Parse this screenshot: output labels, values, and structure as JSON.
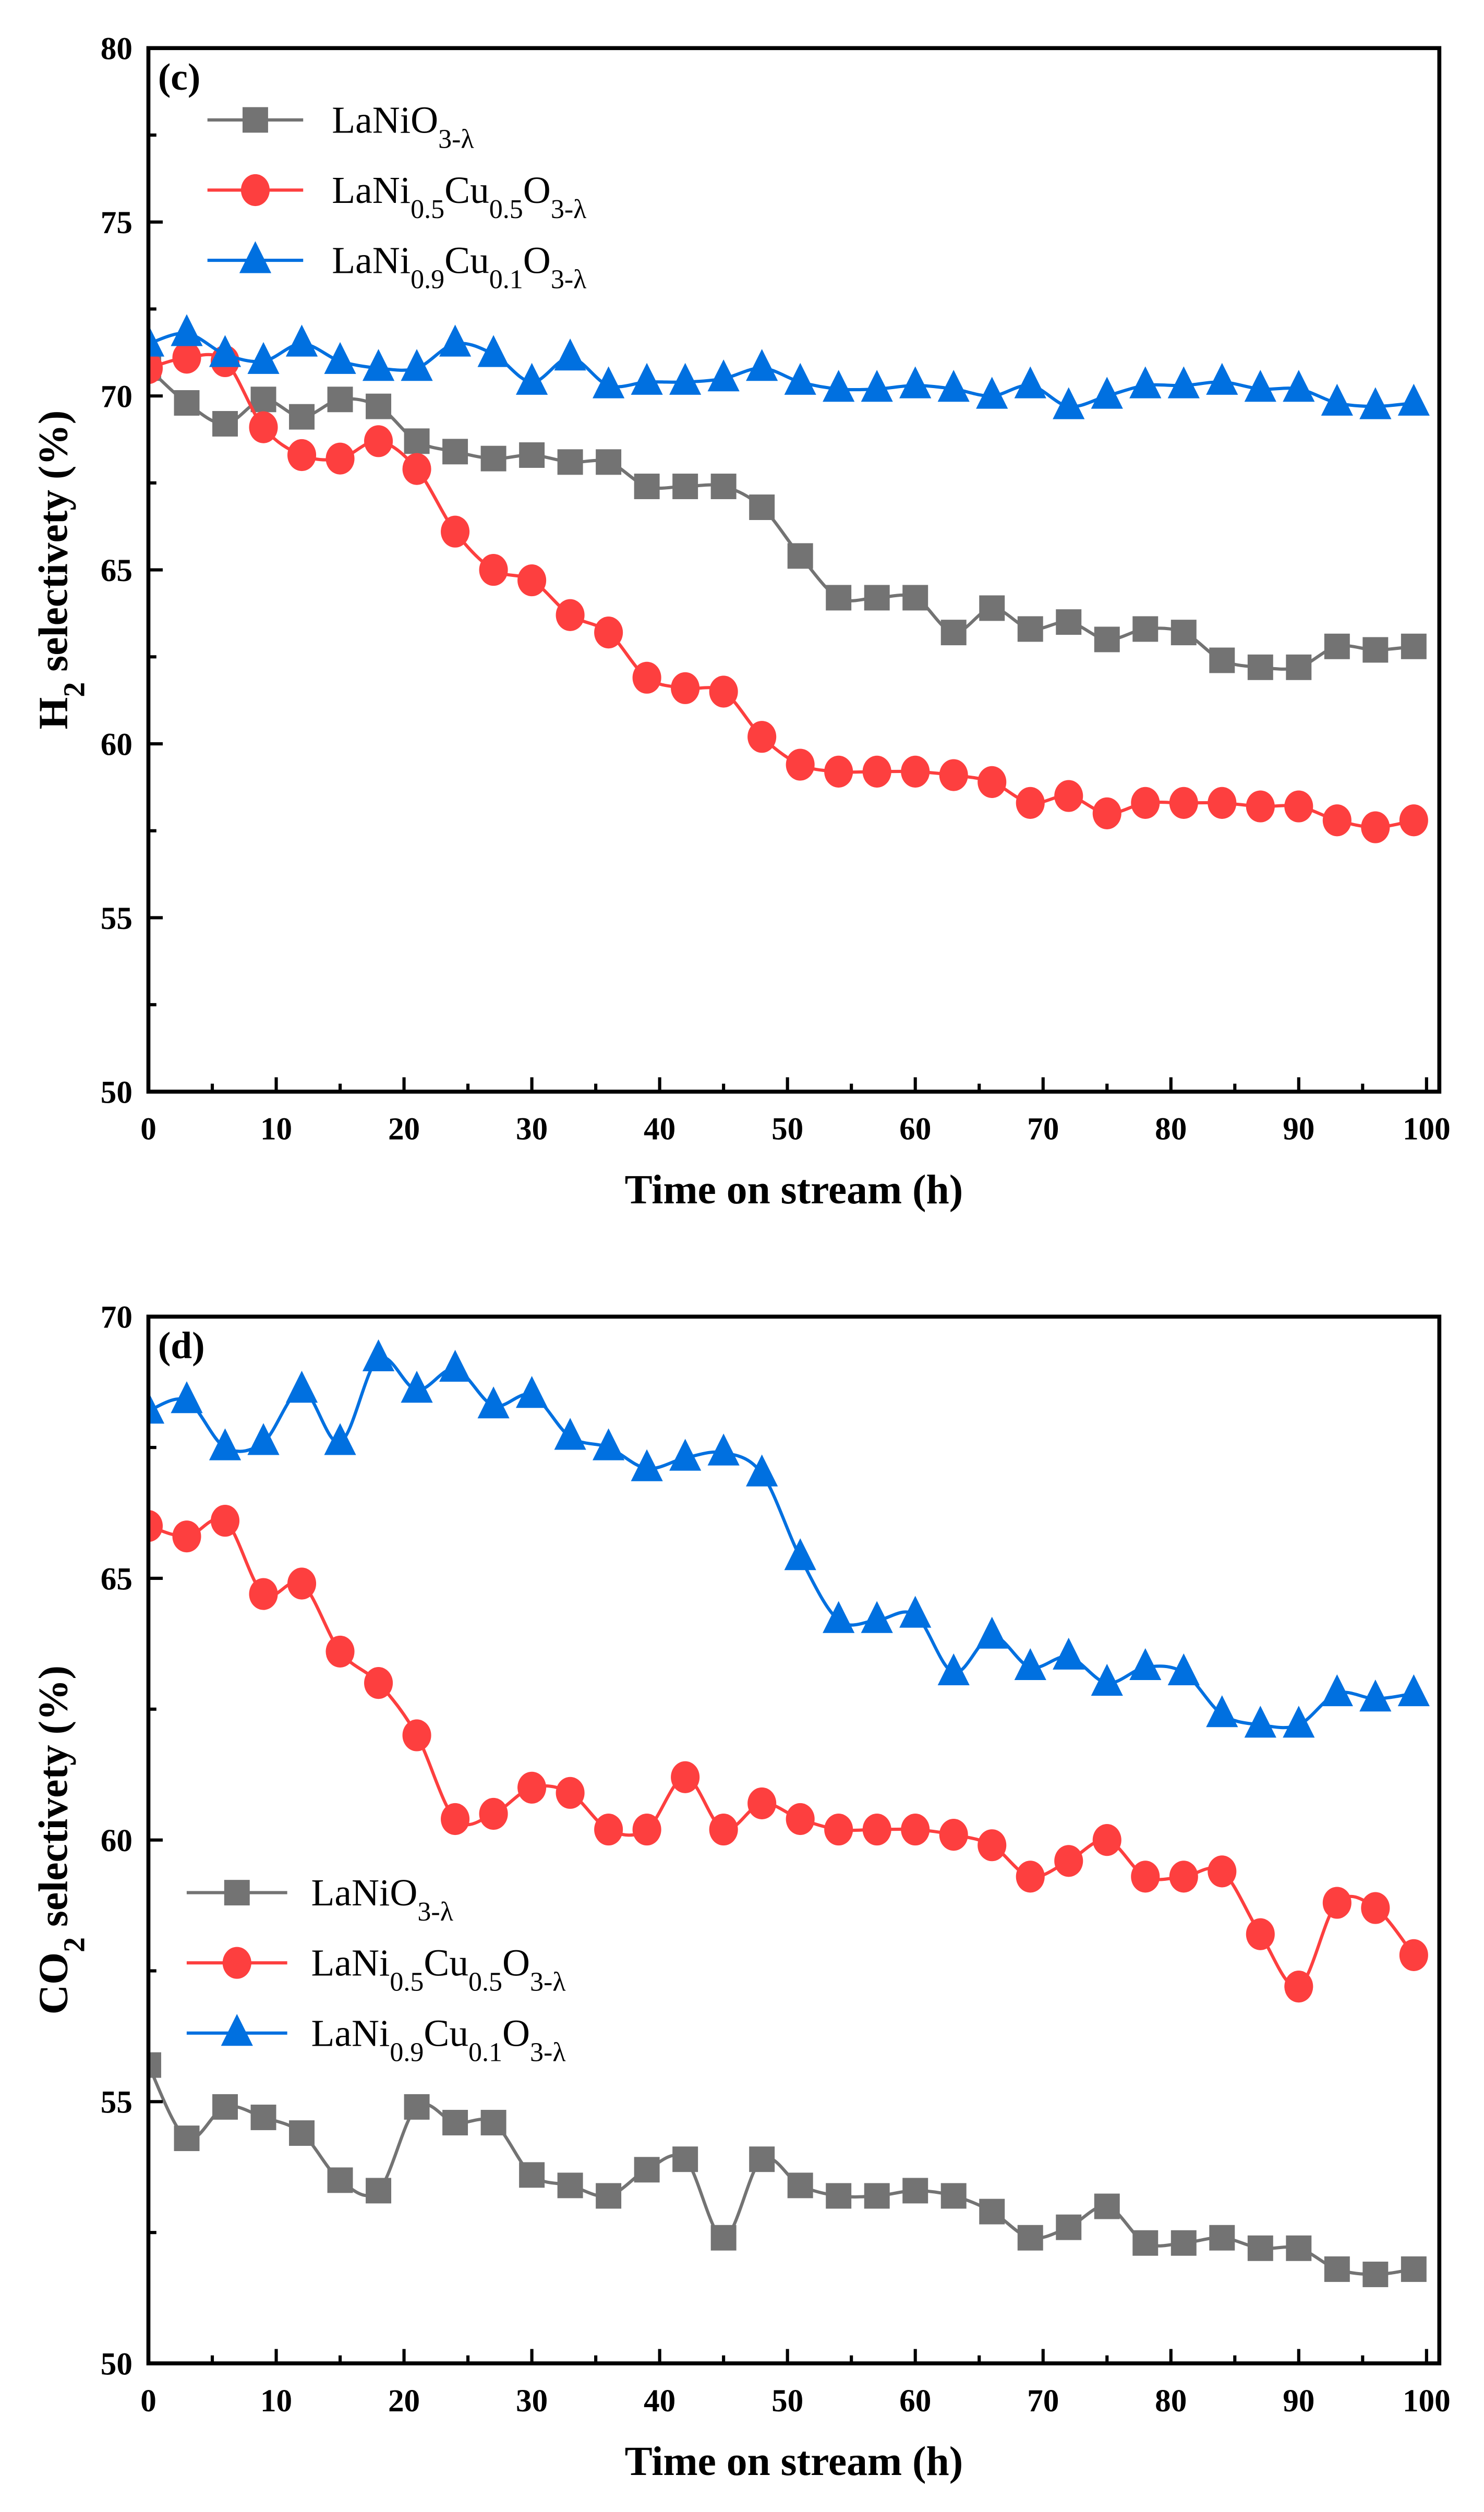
{
  "chart_data": [
    {
      "type": "line",
      "panel_label": "(c)",
      "xlabel": "Time on stream (h)",
      "ylabel_parts": [
        {
          "t": "H",
          "sub": false
        },
        {
          "t": "2",
          "sub": true
        },
        {
          "t": " selectivety (%)",
          "sub": false
        }
      ],
      "xlim": [
        0,
        101
      ],
      "ylim": [
        50,
        80
      ],
      "xticks": [
        0,
        10,
        20,
        30,
        40,
        50,
        60,
        70,
        80,
        90,
        100
      ],
      "yticks": [
        50,
        55,
        60,
        65,
        70,
        75,
        80
      ],
      "legend_position": "top-left",
      "x": [
        0,
        3,
        6,
        9,
        12,
        15,
        18,
        21,
        24,
        27,
        30,
        33,
        36,
        39,
        42,
        45,
        48,
        51,
        54,
        57,
        60,
        63,
        66,
        69,
        72,
        75,
        78,
        81,
        84,
        87,
        90,
        93,
        96,
        99
      ],
      "series": [
        {
          "name": "LaNiO3-λ",
          "label_parts": [
            {
              "t": "LaNiO",
              "sub": false
            },
            {
              "t": "3-λ",
              "sub": true
            }
          ],
          "color": "#737373",
          "marker": "square",
          "values": [
            70.8,
            69.8,
            69.2,
            69.9,
            69.4,
            69.9,
            69.7,
            68.7,
            68.4,
            68.2,
            68.3,
            68.1,
            68.1,
            67.4,
            67.4,
            67.4,
            66.8,
            65.4,
            64.2,
            64.2,
            64.2,
            63.2,
            63.9,
            63.3,
            63.5,
            63.0,
            63.3,
            63.2,
            62.4,
            62.2,
            62.2,
            62.8,
            62.7,
            62.8
          ]
        },
        {
          "name": "LaNi0.5Cu0.5O3-λ",
          "label_parts": [
            {
              "t": "LaNi",
              "sub": false
            },
            {
              "t": "0.5",
              "sub": true
            },
            {
              "t": "Cu",
              "sub": false
            },
            {
              "t": "0.5",
              "sub": true
            },
            {
              "t": "O",
              "sub": false
            },
            {
              "t": "3-λ",
              "sub": true
            }
          ],
          "color": "#fd3f3f",
          "marker": "circle",
          "values": [
            70.8,
            71.1,
            71.0,
            69.1,
            68.3,
            68.2,
            68.7,
            67.9,
            66.1,
            65.0,
            64.7,
            63.7,
            63.2,
            61.9,
            61.6,
            61.5,
            60.2,
            59.4,
            59.2,
            59.2,
            59.2,
            59.1,
            58.9,
            58.3,
            58.5,
            58.0,
            58.3,
            58.3,
            58.3,
            58.2,
            58.2,
            57.8,
            57.6,
            57.8
          ]
        },
        {
          "name": "LaNi0.9Cu0.1O3-λ",
          "label_parts": [
            {
              "t": "LaNi",
              "sub": false
            },
            {
              "t": "0.9",
              "sub": true
            },
            {
              "t": "Cu",
              "sub": false
            },
            {
              "t": "0.1",
              "sub": true
            },
            {
              "t": "O",
              "sub": false
            },
            {
              "t": "3-λ",
              "sub": true
            }
          ],
          "color": "#0070e0",
          "marker": "triangle",
          "values": [
            71.5,
            71.8,
            71.2,
            71.0,
            71.5,
            71.0,
            70.8,
            70.8,
            71.5,
            71.2,
            70.4,
            71.1,
            70.3,
            70.4,
            70.4,
            70.5,
            70.8,
            70.4,
            70.2,
            70.2,
            70.3,
            70.2,
            70.0,
            70.3,
            69.7,
            70.0,
            70.3,
            70.3,
            70.4,
            70.2,
            70.2,
            69.8,
            69.7,
            69.8
          ]
        }
      ]
    },
    {
      "type": "line",
      "panel_label": "(d)",
      "xlabel": "Time on stream (h)",
      "ylabel_parts": [
        {
          "t": "CO",
          "sub": false
        },
        {
          "t": "2",
          "sub": true
        },
        {
          "t": " selectivety (%)",
          "sub": false
        }
      ],
      "xlim": [
        0,
        101
      ],
      "ylim": [
        50,
        70
      ],
      "xticks": [
        0,
        10,
        20,
        30,
        40,
        50,
        60,
        70,
        80,
        90,
        100
      ],
      "yticks": [
        50,
        55,
        60,
        65,
        70
      ],
      "legend_position": "center-left",
      "x": [
        0,
        3,
        6,
        9,
        12,
        15,
        18,
        21,
        24,
        27,
        30,
        33,
        36,
        39,
        42,
        45,
        48,
        51,
        54,
        57,
        60,
        63,
        66,
        69,
        72,
        75,
        78,
        81,
        84,
        87,
        90,
        93,
        96,
        99
      ],
      "series": [
        {
          "name": "LaNiO3-λ",
          "label_parts": [
            {
              "t": "LaNiO",
              "sub": false
            },
            {
              "t": "3-λ",
              "sub": true
            }
          ],
          "color": "#737373",
          "marker": "square",
          "values": [
            55.7,
            54.3,
            54.9,
            54.7,
            54.4,
            53.5,
            53.3,
            54.9,
            54.6,
            54.6,
            53.6,
            53.4,
            53.2,
            53.7,
            53.9,
            52.4,
            53.9,
            53.4,
            53.2,
            53.2,
            53.3,
            53.2,
            52.9,
            52.4,
            52.6,
            53.0,
            52.3,
            52.3,
            52.4,
            52.2,
            52.2,
            51.8,
            51.7,
            51.8
          ]
        },
        {
          "name": "LaNi0.5Cu0.5O3-λ",
          "label_parts": [
            {
              "t": "LaNi",
              "sub": false
            },
            {
              "t": "0.5",
              "sub": true
            },
            {
              "t": "Cu",
              "sub": false
            },
            {
              "t": "0.5",
              "sub": true
            },
            {
              "t": "O",
              "sub": false
            },
            {
              "t": "3-λ",
              "sub": true
            }
          ],
          "color": "#fd3f3f",
          "marker": "circle",
          "values": [
            66.0,
            65.8,
            66.1,
            64.7,
            64.9,
            63.6,
            63.0,
            62.0,
            60.4,
            60.5,
            61.0,
            60.9,
            60.2,
            60.2,
            61.2,
            60.2,
            60.7,
            60.4,
            60.2,
            60.2,
            60.2,
            60.1,
            59.9,
            59.3,
            59.6,
            60.0,
            59.3,
            59.3,
            59.4,
            58.2,
            57.2,
            58.8,
            58.7,
            57.8
          ]
        },
        {
          "name": "LaNi0.9Cu0.1O3-λ",
          "label_parts": [
            {
              "t": "LaNi",
              "sub": false
            },
            {
              "t": "0.9",
              "sub": true
            },
            {
              "t": "Cu",
              "sub": false
            },
            {
              "t": "0.1",
              "sub": true
            },
            {
              "t": "O",
              "sub": false
            },
            {
              "t": "3-λ",
              "sub": true
            }
          ],
          "color": "#0070e0",
          "marker": "triangle",
          "values": [
            68.2,
            68.4,
            67.5,
            67.6,
            68.6,
            67.6,
            69.2,
            68.6,
            69.0,
            68.3,
            68.5,
            67.7,
            67.5,
            67.1,
            67.3,
            67.4,
            67.0,
            65.4,
            64.2,
            64.2,
            64.3,
            63.2,
            63.9,
            63.3,
            63.5,
            63.0,
            63.3,
            63.2,
            62.4,
            62.2,
            62.2,
            62.8,
            62.7,
            62.8
          ]
        }
      ]
    }
  ]
}
